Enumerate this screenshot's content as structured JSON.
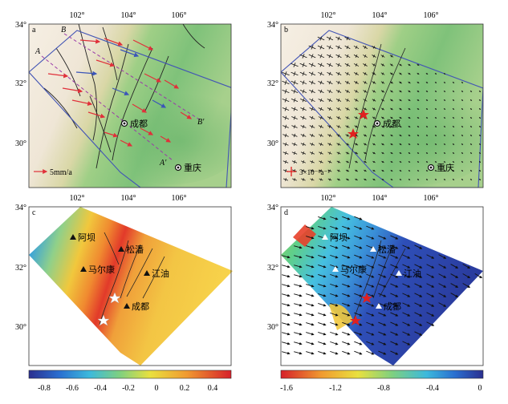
{
  "panels": {
    "a": {
      "label": "a",
      "xticks": [
        "102°",
        "104°",
        "106°"
      ],
      "yticks": [
        "34°",
        "32°",
        "30°"
      ],
      "profile_labels": [
        "A",
        "B",
        "A′",
        "B′"
      ],
      "cities": [
        "成都",
        "重庆"
      ],
      "legend": "5mm/a",
      "arrow_color": "#e0303a"
    },
    "b": {
      "label": "b",
      "xticks": [
        "102°",
        "104°",
        "106°"
      ],
      "yticks": [
        "34°",
        "32°",
        "30°"
      ],
      "cities": [
        "成都",
        "重庆"
      ],
      "legend": "3×10⁻⁸a⁻¹"
    },
    "c": {
      "label": "c",
      "xticks": [
        "102°",
        "104°",
        "106°"
      ],
      "yticks": [
        "34°",
        "32°",
        "30°"
      ],
      "stations": [
        "阿坝",
        "松潘",
        "马尔康",
        "江油",
        "成都"
      ],
      "colorbar_ticks": [
        "-0.8",
        "-0.6",
        "-0.4",
        "-0.2",
        "0",
        "0.2",
        "0.4"
      ]
    },
    "d": {
      "label": "d",
      "xticks": [
        "102°",
        "104°",
        "106°"
      ],
      "yticks": [
        "34°",
        "32°",
        "30°"
      ],
      "stations": [
        "阿坝",
        "松潘",
        "马尔康",
        "江油",
        "成都"
      ],
      "colorbar_ticks": [
        "-1.6",
        "-1.2",
        "-0.8",
        "-0.4",
        "0"
      ]
    }
  }
}
